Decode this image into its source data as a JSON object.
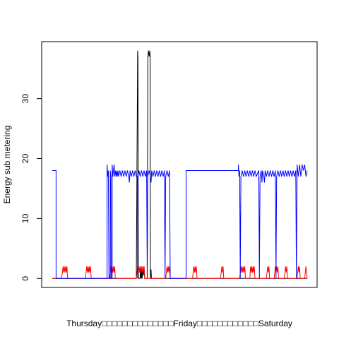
{
  "chart_data": {
    "type": "line",
    "title": "",
    "xlabel": "Thursday□□□□□□□□□□□□□□Friday□□□□□□□□□□□□Saturday",
    "ylabel": "Energy sub metering",
    "ylim": [
      -1.5,
      39.5
    ],
    "yticks": [
      0,
      10,
      20,
      30
    ],
    "x_domain_days": [
      0,
      2.0
    ],
    "grid": false,
    "legend": "none",
    "series": [
      {
        "color": "#000000",
        "points": [
          [
            0.0,
            0
          ],
          [
            0.66,
            0
          ],
          [
            0.66,
            1.5
          ],
          [
            0.67,
            38
          ],
          [
            0.672,
            37
          ],
          [
            0.675,
            0.5
          ],
          [
            0.677,
            0
          ],
          [
            0.69,
            0
          ],
          [
            0.69,
            2
          ],
          [
            0.695,
            0.3
          ],
          [
            0.7,
            0
          ],
          [
            0.7,
            1.5
          ],
          [
            0.705,
            0
          ],
          [
            0.71,
            2
          ],
          [
            0.715,
            0.5
          ],
          [
            0.72,
            2
          ],
          [
            0.725,
            0
          ],
          [
            0.745,
            0
          ],
          [
            0.75,
            37
          ],
          [
            0.755,
            38
          ],
          [
            0.76,
            37
          ],
          [
            0.765,
            38
          ],
          [
            0.768,
            37
          ],
          [
            0.77,
            0
          ],
          [
            0.775,
            1.5
          ],
          [
            0.778,
            0
          ],
          [
            0.79,
            0
          ],
          [
            2.0,
            0
          ]
        ]
      },
      {
        "color": "#ff0000",
        "points": [
          [
            0.0,
            0
          ],
          [
            0.07,
            0
          ],
          [
            0.08,
            1
          ],
          [
            0.085,
            2
          ],
          [
            0.09,
            1
          ],
          [
            0.095,
            2
          ],
          [
            0.1,
            1
          ],
          [
            0.105,
            2
          ],
          [
            0.11,
            1
          ],
          [
            0.115,
            2
          ],
          [
            0.12,
            0
          ],
          [
            0.26,
            0
          ],
          [
            0.265,
            1
          ],
          [
            0.27,
            2
          ],
          [
            0.275,
            1
          ],
          [
            0.28,
            2
          ],
          [
            0.285,
            1
          ],
          [
            0.29,
            2
          ],
          [
            0.295,
            1
          ],
          [
            0.3,
            2
          ],
          [
            0.305,
            0
          ],
          [
            0.45,
            0
          ],
          [
            0.455,
            1
          ],
          [
            0.46,
            2
          ],
          [
            0.465,
            1
          ],
          [
            0.47,
            2
          ],
          [
            0.475,
            1
          ],
          [
            0.48,
            2
          ],
          [
            0.485,
            1
          ],
          [
            0.49,
            2
          ],
          [
            0.495,
            0
          ],
          [
            0.66,
            0
          ],
          [
            0.665,
            1
          ],
          [
            0.67,
            2
          ],
          [
            0.675,
            1
          ],
          [
            0.68,
            2
          ],
          [
            0.685,
            1
          ],
          [
            0.69,
            2
          ],
          [
            0.695,
            1
          ],
          [
            0.7,
            2
          ],
          [
            0.705,
            1
          ],
          [
            0.71,
            2
          ],
          [
            0.715,
            1
          ],
          [
            0.72,
            2
          ],
          [
            0.725,
            0
          ],
          [
            0.89,
            0
          ],
          [
            0.895,
            1
          ],
          [
            0.9,
            2
          ],
          [
            0.905,
            1
          ],
          [
            0.91,
            2
          ],
          [
            0.915,
            1
          ],
          [
            0.92,
            2
          ],
          [
            0.925,
            0
          ],
          [
            1.1,
            0
          ],
          [
            1.105,
            1
          ],
          [
            1.11,
            2
          ],
          [
            1.115,
            1
          ],
          [
            1.12,
            2
          ],
          [
            1.125,
            1
          ],
          [
            1.13,
            2
          ],
          [
            1.135,
            0
          ],
          [
            1.32,
            0
          ],
          [
            1.325,
            1
          ],
          [
            1.33,
            2
          ],
          [
            1.335,
            1
          ],
          [
            1.34,
            2
          ],
          [
            1.345,
            0
          ],
          [
            1.47,
            0
          ],
          [
            1.475,
            1
          ],
          [
            1.48,
            2
          ],
          [
            1.485,
            1
          ],
          [
            1.49,
            2
          ],
          [
            1.495,
            1
          ],
          [
            1.5,
            2
          ],
          [
            1.505,
            1
          ],
          [
            1.51,
            2
          ],
          [
            1.515,
            0
          ],
          [
            1.55,
            0
          ],
          [
            1.555,
            2
          ],
          [
            1.56,
            1
          ],
          [
            1.565,
            2
          ],
          [
            1.57,
            1
          ],
          [
            1.575,
            2
          ],
          [
            1.58,
            1
          ],
          [
            1.585,
            2
          ],
          [
            1.59,
            0
          ],
          [
            1.68,
            0
          ],
          [
            1.685,
            1
          ],
          [
            1.69,
            2
          ],
          [
            1.695,
            1
          ],
          [
            1.7,
            2
          ],
          [
            1.705,
            0
          ],
          [
            1.74,
            0
          ],
          [
            1.745,
            1
          ],
          [
            1.75,
            2
          ],
          [
            1.755,
            1
          ],
          [
            1.76,
            2
          ],
          [
            1.765,
            1
          ],
          [
            1.77,
            2
          ],
          [
            1.775,
            0
          ],
          [
            1.82,
            0
          ],
          [
            1.825,
            1
          ],
          [
            1.83,
            2
          ],
          [
            1.835,
            1
          ],
          [
            1.84,
            2
          ],
          [
            1.845,
            0
          ],
          [
            1.92,
            0
          ],
          [
            1.925,
            1
          ],
          [
            1.93,
            2
          ],
          [
            1.935,
            1
          ],
          [
            1.94,
            2
          ],
          [
            1.945,
            0
          ],
          [
            1.98,
            0
          ],
          [
            1.985,
            1
          ],
          [
            1.99,
            2
          ],
          [
            2.0,
            0
          ]
        ]
      },
      {
        "color": "#0000ff",
        "points": [
          [
            0.0,
            18
          ],
          [
            0.03,
            18
          ],
          [
            0.03,
            0
          ],
          [
            0.43,
            0
          ],
          [
            0.43,
            19
          ],
          [
            0.435,
            17
          ],
          [
            0.44,
            18
          ],
          [
            0.445,
            0
          ],
          [
            0.455,
            0
          ],
          [
            0.455,
            18
          ],
          [
            0.46,
            17
          ],
          [
            0.462,
            0
          ],
          [
            0.47,
            0
          ],
          [
            0.47,
            19
          ],
          [
            0.475,
            17
          ],
          [
            0.48,
            18
          ],
          [
            0.485,
            19
          ],
          [
            0.49,
            17
          ],
          [
            0.495,
            18
          ],
          [
            0.5,
            17
          ],
          [
            0.505,
            18
          ],
          [
            0.51,
            17
          ],
          [
            0.515,
            18
          ],
          [
            0.52,
            17
          ],
          [
            0.53,
            18
          ],
          [
            0.54,
            17
          ],
          [
            0.55,
            18
          ],
          [
            0.56,
            17
          ],
          [
            0.57,
            18
          ],
          [
            0.58,
            17
          ],
          [
            0.59,
            18
          ],
          [
            0.6,
            17
          ],
          [
            0.605,
            16
          ],
          [
            0.61,
            18
          ],
          [
            0.62,
            17
          ],
          [
            0.63,
            18
          ],
          [
            0.64,
            17
          ],
          [
            0.65,
            18
          ],
          [
            0.66,
            17
          ],
          [
            0.668,
            17
          ],
          [
            0.67,
            0
          ],
          [
            0.672,
            17
          ],
          [
            0.68,
            18
          ],
          [
            0.69,
            17
          ],
          [
            0.7,
            18
          ],
          [
            0.71,
            17
          ],
          [
            0.72,
            18
          ],
          [
            0.73,
            17
          ],
          [
            0.74,
            18
          ],
          [
            0.745,
            0
          ],
          [
            0.748,
            17
          ],
          [
            0.76,
            18
          ],
          [
            0.77,
            17
          ],
          [
            0.775,
            16
          ],
          [
            0.78,
            18
          ],
          [
            0.79,
            17
          ],
          [
            0.8,
            18
          ],
          [
            0.81,
            17
          ],
          [
            0.82,
            18
          ],
          [
            0.83,
            17
          ],
          [
            0.84,
            18
          ],
          [
            0.85,
            17
          ],
          [
            0.86,
            18
          ],
          [
            0.87,
            17
          ],
          [
            0.88,
            18
          ],
          [
            0.885,
            0
          ],
          [
            0.89,
            17
          ],
          [
            0.9,
            18
          ],
          [
            0.91,
            17
          ],
          [
            0.92,
            18
          ],
          [
            0.925,
            0
          ],
          [
            1.05,
            0
          ],
          [
            1.05,
            18
          ],
          [
            1.1,
            18
          ],
          [
            1.15,
            18
          ],
          [
            1.2,
            18
          ],
          [
            1.25,
            18
          ],
          [
            1.3,
            18
          ],
          [
            1.35,
            18
          ],
          [
            1.4,
            18
          ],
          [
            1.45,
            18
          ],
          [
            1.46,
            18
          ],
          [
            1.46,
            19
          ],
          [
            1.465,
            17
          ],
          [
            1.47,
            18
          ],
          [
            1.475,
            0
          ],
          [
            1.48,
            17
          ],
          [
            1.49,
            18
          ],
          [
            1.5,
            17
          ],
          [
            1.51,
            18
          ],
          [
            1.52,
            17
          ],
          [
            1.53,
            18
          ],
          [
            1.54,
            17
          ],
          [
            1.55,
            18
          ],
          [
            1.56,
            17
          ],
          [
            1.57,
            18
          ],
          [
            1.58,
            17
          ],
          [
            1.59,
            18
          ],
          [
            1.6,
            17
          ],
          [
            1.62,
            18
          ],
          [
            1.625,
            0
          ],
          [
            1.63,
            17
          ],
          [
            1.64,
            18
          ],
          [
            1.645,
            16
          ],
          [
            1.65,
            18
          ],
          [
            1.66,
            17
          ],
          [
            1.665,
            16
          ],
          [
            1.67,
            18
          ],
          [
            1.68,
            17
          ],
          [
            1.69,
            18
          ],
          [
            1.7,
            17
          ],
          [
            1.71,
            18
          ],
          [
            1.72,
            17
          ],
          [
            1.73,
            18
          ],
          [
            1.74,
            17
          ],
          [
            1.75,
            18
          ],
          [
            1.755,
            0
          ],
          [
            1.76,
            17
          ],
          [
            1.77,
            18
          ],
          [
            1.78,
            17
          ],
          [
            1.79,
            18
          ],
          [
            1.8,
            17
          ],
          [
            1.81,
            18
          ],
          [
            1.82,
            17
          ],
          [
            1.83,
            18
          ],
          [
            1.84,
            17
          ],
          [
            1.85,
            18
          ],
          [
            1.86,
            17
          ],
          [
            1.87,
            18
          ],
          [
            1.88,
            17
          ],
          [
            1.89,
            18
          ],
          [
            1.9,
            17
          ],
          [
            1.91,
            18
          ],
          [
            1.915,
            0
          ],
          [
            1.92,
            19
          ],
          [
            1.93,
            17
          ],
          [
            1.94,
            19
          ],
          [
            1.95,
            17
          ],
          [
            1.96,
            19
          ],
          [
            1.97,
            18
          ],
          [
            1.98,
            19
          ],
          [
            1.99,
            17
          ],
          [
            2.0,
            18
          ]
        ]
      }
    ]
  }
}
